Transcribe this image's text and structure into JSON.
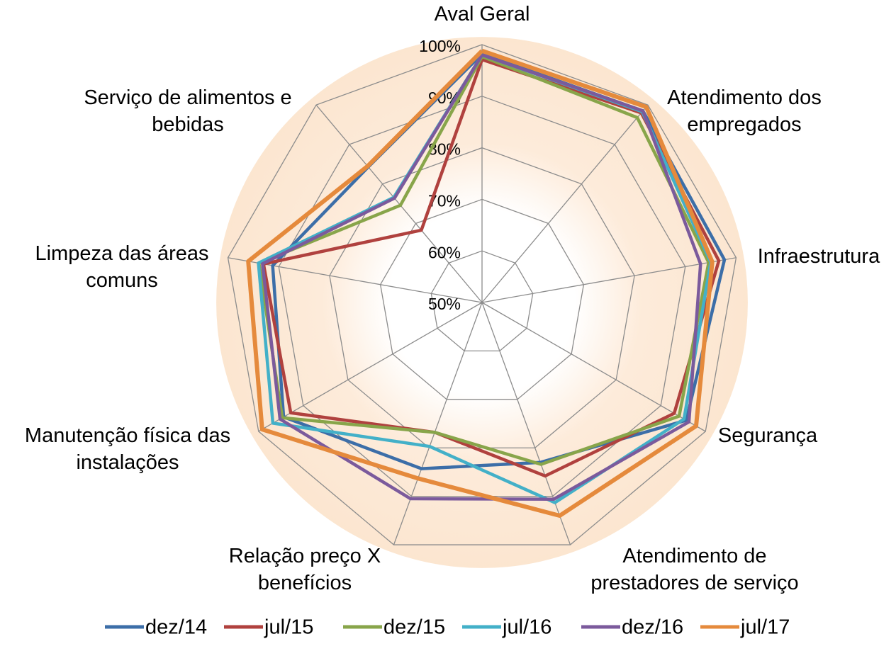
{
  "chart_data": {
    "type": "radar",
    "categories": [
      "Aval Geral",
      "Atendimento dos empregados",
      "Infraestrutura",
      "Segurança",
      "Atendimento de prestadores de serviço",
      "Relação preço X benefícios",
      "Manutenção física das instalações",
      "Limpeza das áreas comuns",
      "Serviço de alimentos e bebidas"
    ],
    "ylim": [
      50,
      100
    ],
    "yticks": [
      {
        "value": 50,
        "label": "50%"
      },
      {
        "value": 60,
        "label": "60%"
      },
      {
        "value": 70,
        "label": "70%"
      },
      {
        "value": 80,
        "label": "80%"
      },
      {
        "value": 90,
        "label": "90%"
      },
      {
        "value": 100,
        "label": "100%"
      }
    ],
    "grid": true,
    "legend": "bottom",
    "series": [
      {
        "name": "dez/14",
        "color": "#3c6ea8",
        "values": [
          98.2,
          98.5,
          97.7,
          95.7,
          83,
          84.3,
          94.4,
          91.2,
          84.3
        ]
      },
      {
        "name": "jul/15",
        "color": "#b0413e",
        "values": [
          97.1,
          98,
          96.6,
          93,
          85.8,
          76.8,
          92.8,
          93,
          68.3
        ]
      },
      {
        "name": "dez/15",
        "color": "#88a54a",
        "values": [
          97.7,
          96.8,
          94.6,
          94.1,
          83.4,
          76.8,
          94.7,
          93.9,
          74.6
        ]
      },
      {
        "name": "jul/16",
        "color": "#43b0c8",
        "values": [
          98,
          98.3,
          95,
          95.2,
          91.3,
          79.7,
          96.8,
          94,
          76.6
        ]
      },
      {
        "name": "dez/16",
        "color": "#7b5a9c",
        "values": [
          98,
          98.5,
          93,
          96.3,
          90.6,
          90.5,
          95.2,
          93.2,
          76.4
        ]
      },
      {
        "name": "jul/17",
        "color": "#e58a3c",
        "values": [
          98.8,
          99.5,
          95.3,
          97.9,
          94,
          86.3,
          99.2,
          96,
          84.5
        ]
      }
    ]
  }
}
